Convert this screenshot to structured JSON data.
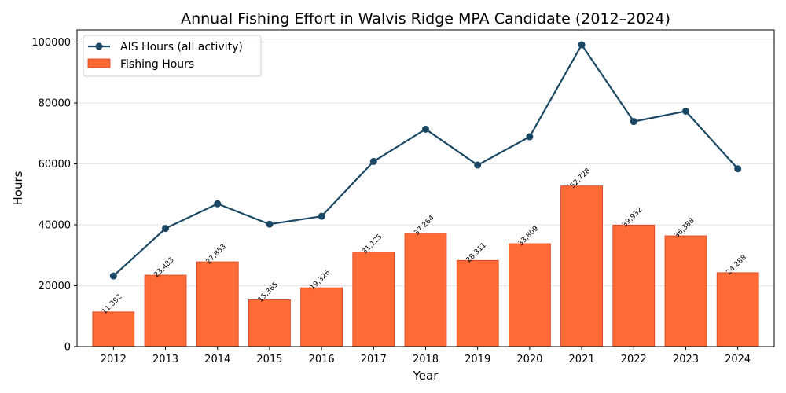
{
  "chart_data": {
    "type": "bar",
    "title": "Annual Fishing Effort in Walvis Ridge MPA Candidate (2012–2024)",
    "xlabel": "Year",
    "ylabel": "Hours",
    "categories": [
      "2012",
      "2013",
      "2014",
      "2015",
      "2016",
      "2017",
      "2018",
      "2019",
      "2020",
      "2021",
      "2022",
      "2023",
      "2024"
    ],
    "ylim": [
      0,
      104000
    ],
    "yticks": [
      0,
      20000,
      40000,
      60000,
      80000,
      100000
    ],
    "grid": "horizontal",
    "legend_position": "top-left",
    "series": [
      {
        "name": "AIS Hours (all activity)",
        "type": "line",
        "color": "#1b4965",
        "values": [
          23200,
          38800,
          46900,
          40200,
          42800,
          60800,
          71400,
          59600,
          68900,
          99100,
          73900,
          77300,
          58400
        ]
      },
      {
        "name": "Fishing Hours",
        "type": "bar",
        "color": "#ff6b35",
        "edge_color": "#d43d1a",
        "values": [
          11392,
          23483,
          27853,
          15365,
          19326,
          31125,
          37264,
          28311,
          33809,
          52728,
          39932,
          36388,
          24288
        ],
        "data_labels": [
          "11,392",
          "23,483",
          "27,853",
          "15,365",
          "19,326",
          "31,125",
          "37,264",
          "28,311",
          "33,809",
          "52,728",
          "39,932",
          "36,388",
          "24,288"
        ]
      }
    ]
  }
}
